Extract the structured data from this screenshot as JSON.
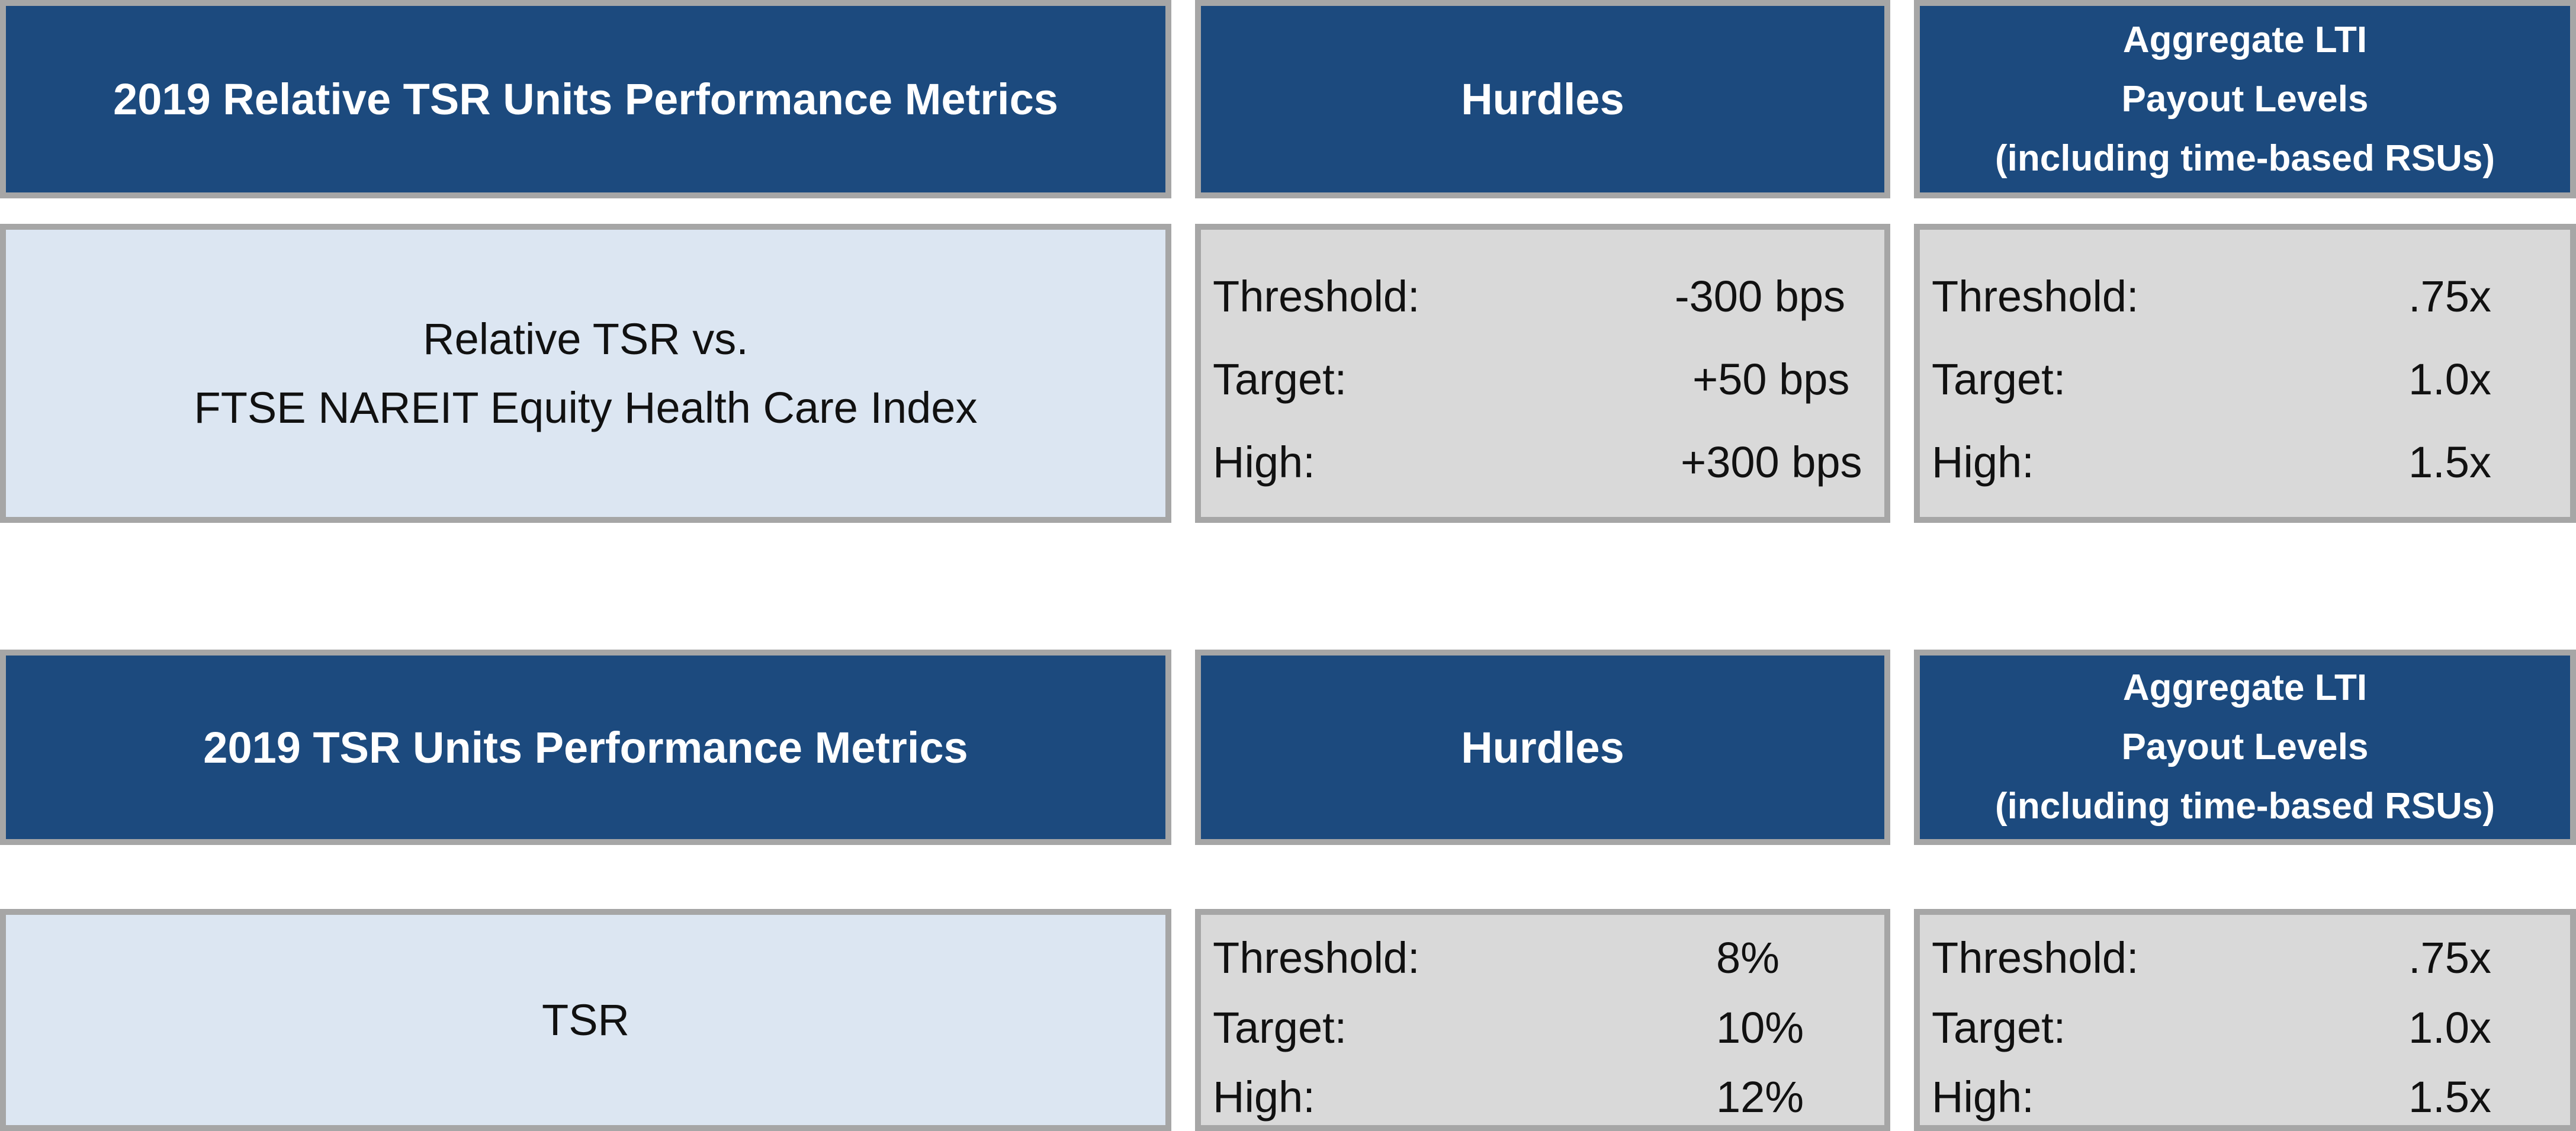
{
  "tables": [
    {
      "metrics_header": "2019 Relative TSR Units Performance Metrics",
      "hurdles_header": "Hurdles",
      "payout_header": [
        "Aggregate LTI",
        "Payout Levels",
        "(including time-based RSUs)"
      ],
      "metric_lines": [
        "Relative TSR vs.",
        "FTSE NAREIT Equity Health Care Index"
      ],
      "hurdles": [
        {
          "label": "Threshold:",
          "value": "-300 bps"
        },
        {
          "label": "Target:",
          "value": "+50 bps"
        },
        {
          "label": "High:",
          "value": "+300 bps"
        }
      ],
      "payouts": [
        {
          "label": "Threshold:",
          "value": ".75x"
        },
        {
          "label": "Target:",
          "value": "1.0x"
        },
        {
          "label": "High:",
          "value": "1.5x"
        }
      ]
    },
    {
      "metrics_header": "2019 TSR Units Performance Metrics",
      "hurdles_header": "Hurdles",
      "payout_header": [
        "Aggregate LTI",
        "Payout Levels",
        "(including time-based RSUs)"
      ],
      "metric_lines": [
        "TSR"
      ],
      "hurdles": [
        {
          "label": "Threshold:",
          "value": "8%"
        },
        {
          "label": "Target:",
          "value": "10%"
        },
        {
          "label": "High:",
          "value": "12%"
        }
      ],
      "payouts": [
        {
          "label": "Threshold:",
          "value": ".75x"
        },
        {
          "label": "Target:",
          "value": "1.0x"
        },
        {
          "label": "High:",
          "value": "1.5x"
        }
      ]
    }
  ]
}
